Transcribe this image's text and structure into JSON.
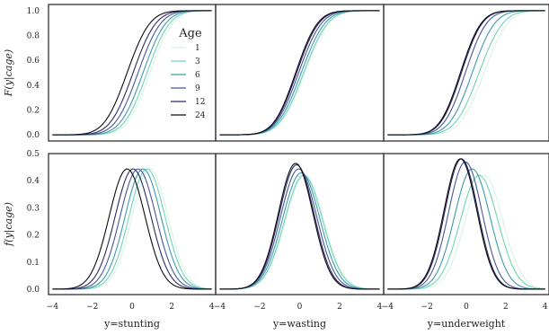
{
  "chart_data": {
    "type": "line",
    "layout": "2x3 grid",
    "legend": {
      "title": "Age",
      "placement": "upper-right of top-left panel"
    },
    "series_colors": [
      "#d8f3e6",
      "#6fd6b2",
      "#3c9ab0",
      "#46569c",
      "#2f2a5e",
      "#0b0b14"
    ],
    "series": [
      {
        "name": "1"
      },
      {
        "name": "3"
      },
      {
        "name": "6"
      },
      {
        "name": "9"
      },
      {
        "name": "12"
      },
      {
        "name": "24"
      }
    ],
    "xlim": [
      -4.2,
      4.2
    ],
    "x_ticks": [
      -4,
      -2,
      0,
      2,
      4
    ],
    "x_tick_labels": [
      "−4",
      "−2",
      "0",
      "2",
      "4"
    ],
    "rows": [
      {
        "ylabel": "F(y|cage)",
        "ylim": [
          -0.05,
          1.05
        ],
        "y_ticks": [
          0.0,
          0.2,
          0.4,
          0.6,
          0.8,
          1.0
        ],
        "y_tick_labels": [
          "0.0",
          "0.2",
          "0.4",
          "0.6",
          "0.8",
          "1.0"
        ]
      },
      {
        "ylabel": "f(y|cage)",
        "ylim": [
          -0.02,
          0.5
        ],
        "y_ticks": [
          0.0,
          0.1,
          0.2,
          0.3,
          0.4,
          0.5
        ],
        "y_tick_labels": [
          "0.0",
          "0.1",
          "0.2",
          "0.3",
          "0.4",
          "0.5"
        ]
      }
    ],
    "panels_by_column": [
      {
        "xlabel": "y=stunting",
        "curves": [
          {
            "age": "1",
            "mean": 0.9,
            "sd": 0.9
          },
          {
            "age": "3",
            "mean": 0.75,
            "sd": 0.9
          },
          {
            "age": "6",
            "mean": 0.55,
            "sd": 0.9
          },
          {
            "age": "9",
            "mean": 0.3,
            "sd": 0.9
          },
          {
            "age": "12",
            "mean": 0.05,
            "sd": 0.9
          },
          {
            "age": "24",
            "mean": -0.25,
            "sd": 0.9
          }
        ]
      },
      {
        "xlabel": "y=wasting",
        "curves": [
          {
            "age": "1",
            "mean": 0.25,
            "sd": 0.95
          },
          {
            "age": "3",
            "mean": 0.2,
            "sd": 0.95
          },
          {
            "age": "6",
            "mean": 0.08,
            "sd": 0.93
          },
          {
            "age": "9",
            "mean": -0.05,
            "sd": 0.9
          },
          {
            "age": "12",
            "mean": -0.15,
            "sd": 0.87
          },
          {
            "age": "24",
            "mean": -0.2,
            "sd": 0.86
          }
        ]
      },
      {
        "xlabel": "y=underweight",
        "curves": [
          {
            "age": "1",
            "mean": 0.9,
            "sd": 0.95
          },
          {
            "age": "3",
            "mean": 0.65,
            "sd": 0.95
          },
          {
            "age": "6",
            "mean": 0.3,
            "sd": 0.9
          },
          {
            "age": "9",
            "mean": -0.05,
            "sd": 0.85
          },
          {
            "age": "12",
            "mean": -0.25,
            "sd": 0.83
          },
          {
            "age": "24",
            "mean": -0.3,
            "sd": 0.83
          }
        ]
      }
    ]
  }
}
